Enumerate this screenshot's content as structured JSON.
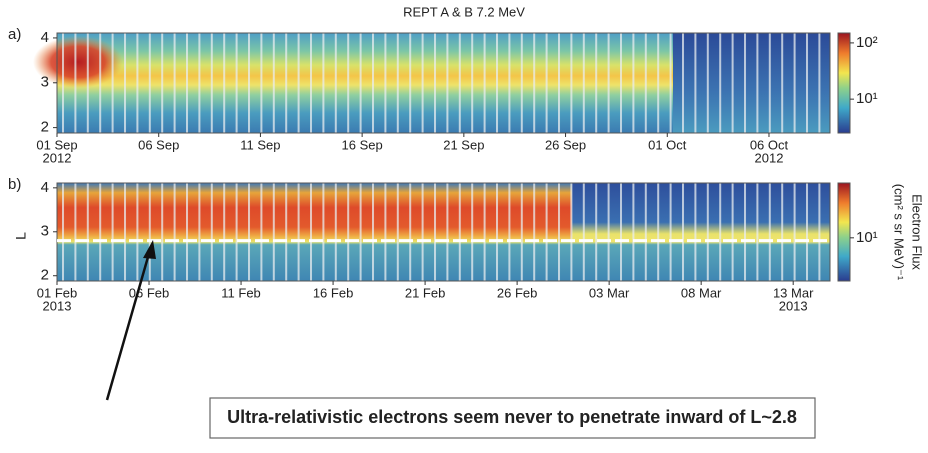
{
  "title": "REPT A & B    7.2 MeV",
  "annotation": "Ultra-relativistic electrons seem never to penetrate inward of L~2.8",
  "chart_data": [
    {
      "type": "spectrogram",
      "panel_label": "a)",
      "xlim": [
        "2012-09-01",
        "2012-10-09"
      ],
      "xticks": [
        {
          "value": "2012-09-01",
          "label": "01 Sep"
        },
        {
          "value": "2012-09-06",
          "label": "06 Sep"
        },
        {
          "value": "2012-09-11",
          "label": "11 Sep"
        },
        {
          "value": "2012-09-16",
          "label": "16 Sep"
        },
        {
          "value": "2012-09-21",
          "label": "21 Sep"
        },
        {
          "value": "2012-09-26",
          "label": "26 Sep"
        },
        {
          "value": "2012-10-01",
          "label": "01 Oct"
        },
        {
          "value": "2012-10-06",
          "label": "06 Oct"
        }
      ],
      "year_labels": [
        {
          "value": "2012-09-01",
          "label": "2012"
        },
        {
          "value": "2012-10-06",
          "label": "2012"
        }
      ],
      "ylim": [
        1.88,
        4.11
      ],
      "yticks": [
        2,
        3,
        4
      ],
      "color_scale": "log",
      "clim": [
        2.5,
        150
      ],
      "cticks": [
        {
          "value": 10,
          "label": "10¹"
        },
        {
          "value": 100,
          "label": "10²"
        }
      ]
    },
    {
      "type": "spectrogram",
      "panel_label": "b)",
      "ylabel": "L",
      "colorbar_title": "Electron Flux",
      "colorbar_units": "(cm² s sr MeV)⁻¹",
      "xlim": [
        "2013-02-01",
        "2013-03-15"
      ],
      "xticks": [
        {
          "value": "2013-02-01",
          "label": "01 Feb"
        },
        {
          "value": "2013-02-06",
          "label": "06 Feb"
        },
        {
          "value": "2013-02-11",
          "label": "11 Feb"
        },
        {
          "value": "2013-02-16",
          "label": "16 Feb"
        },
        {
          "value": "2013-02-21",
          "label": "21 Feb"
        },
        {
          "value": "2013-02-26",
          "label": "26 Feb"
        },
        {
          "value": "2013-03-03",
          "label": "03 Mar"
        },
        {
          "value": "2013-03-08",
          "label": "08 Mar"
        },
        {
          "value": "2013-03-13",
          "label": "13 Mar"
        }
      ],
      "year_labels": [
        {
          "value": "2013-02-01",
          "label": "2013"
        },
        {
          "value": "2013-03-13",
          "label": "2013"
        }
      ],
      "ylim": [
        1.88,
        4.11
      ],
      "yticks": [
        2,
        3,
        4
      ],
      "threshold_line": 2.8,
      "color_scale": "log",
      "clim": [
        4,
        32
      ],
      "cticks": [
        {
          "value": 10,
          "label": "10¹"
        }
      ]
    }
  ]
}
